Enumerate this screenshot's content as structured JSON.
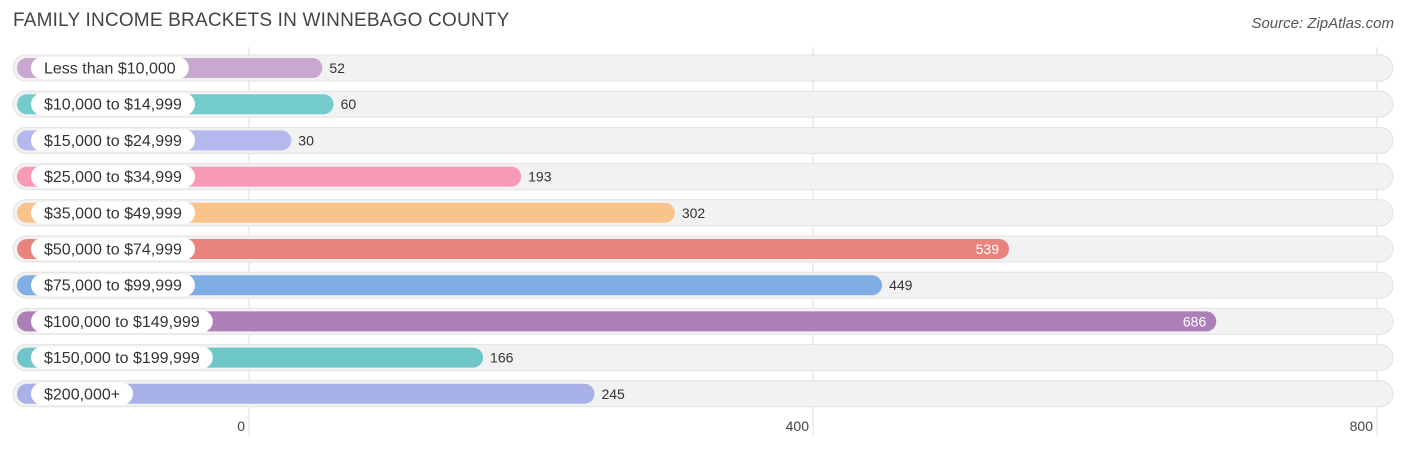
{
  "title": "FAMILY INCOME BRACKETS IN WINNEBAGO COUNTY",
  "source": "Source: ZipAtlas.com",
  "chart_data": {
    "type": "bar",
    "orientation": "horizontal",
    "title": "FAMILY INCOME BRACKETS IN WINNEBAGO COUNTY",
    "categories": [
      "Less than $10,000",
      "$10,000 to $14,999",
      "$15,000 to $24,999",
      "$25,000 to $34,999",
      "$35,000 to $49,999",
      "$50,000 to $74,999",
      "$75,000 to $99,999",
      "$100,000 to $149,999",
      "$150,000 to $199,999",
      "$200,000+"
    ],
    "values": [
      52,
      60,
      30,
      193,
      302,
      539,
      449,
      686,
      166,
      245
    ],
    "colors": [
      "#c9a8d0",
      "#74cbcb",
      "#b4b8ec",
      "#f79ab6",
      "#f9c38c",
      "#e8837e",
      "#7eaee3",
      "#ad7fb9",
      "#6ec6c9",
      "#a8b1e8"
    ],
    "xlim": [
      0,
      800
    ],
    "xticks": [
      0,
      400,
      800
    ],
    "xtick_labels": [
      "0",
      "400",
      "800"
    ],
    "grid": true,
    "legend": "none"
  }
}
